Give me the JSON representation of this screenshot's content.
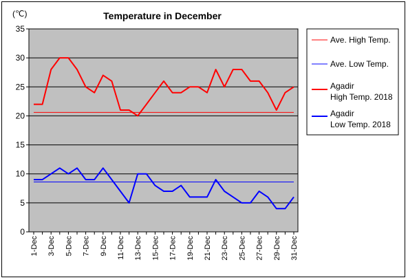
{
  "chart_data": {
    "type": "line",
    "title": "Temperature in December",
    "ylabel": "(℃)",
    "xlabel": "",
    "ylim": [
      0,
      35
    ],
    "yticks": [
      0,
      5,
      10,
      15,
      20,
      25,
      30,
      35
    ],
    "grid": true,
    "legend_placement": "right",
    "plot_background": "#c0c0c0",
    "categories": [
      "1-Dec",
      "2-Dec",
      "3-Dec",
      "4-Dec",
      "5-Dec",
      "6-Dec",
      "7-Dec",
      "8-Dec",
      "9-Dec",
      "10-Dec",
      "11-Dec",
      "12-Dec",
      "13-Dec",
      "14-Dec",
      "15-Dec",
      "16-Dec",
      "17-Dec",
      "18-Dec",
      "19-Dec",
      "20-Dec",
      "21-Dec",
      "22-Dec",
      "23-Dec",
      "24-Dec",
      "25-Dec",
      "26-Dec",
      "27-Dec",
      "28-Dec",
      "29-Dec",
      "30-Dec",
      "31-Dec"
    ],
    "xtick_labels": [
      "1-Dec",
      "3-Dec",
      "5-Dec",
      "7-Dec",
      "9-Dec",
      "11-Dec",
      "13-Dec",
      "15-Dec",
      "17-Dec",
      "19-Dec",
      "21-Dec",
      "23-Dec",
      "25-Dec",
      "27-Dec",
      "29-Dec",
      "31-Dec"
    ],
    "series": [
      {
        "name": "Ave. High Temp.",
        "color": "#ff0000",
        "width": 1,
        "values": [
          20.6,
          20.6,
          20.6,
          20.6,
          20.6,
          20.6,
          20.6,
          20.6,
          20.6,
          20.6,
          20.6,
          20.6,
          20.6,
          20.6,
          20.6,
          20.6,
          20.6,
          20.6,
          20.6,
          20.6,
          20.6,
          20.6,
          20.6,
          20.6,
          20.6,
          20.6,
          20.6,
          20.6,
          20.6,
          20.6,
          20.6
        ]
      },
      {
        "name": "Ave. Low Temp.",
        "color": "#0000ff",
        "width": 1,
        "values": [
          8.6,
          8.6,
          8.6,
          8.6,
          8.6,
          8.6,
          8.6,
          8.6,
          8.6,
          8.6,
          8.6,
          8.6,
          8.6,
          8.6,
          8.6,
          8.6,
          8.6,
          8.6,
          8.6,
          8.6,
          8.6,
          8.6,
          8.6,
          8.6,
          8.6,
          8.6,
          8.6,
          8.6,
          8.6,
          8.6,
          8.6
        ]
      },
      {
        "name": "Agadir\nHigh Temp. 2018",
        "color": "#ff0000",
        "width": 2,
        "values": [
          22,
          22,
          28,
          30,
          30,
          28,
          25,
          24,
          27,
          26,
          21,
          21,
          20,
          22,
          24,
          26,
          24,
          24,
          25,
          25,
          24,
          28,
          25,
          28,
          28,
          26,
          26,
          24,
          21,
          24,
          25
        ]
      },
      {
        "name": "Agadir\nLow Temp. 2018",
        "color": "#0000ff",
        "width": 2,
        "values": [
          9,
          9,
          10,
          11,
          10,
          11,
          9,
          9,
          11,
          9,
          7,
          5,
          10,
          10,
          8,
          7,
          7,
          8,
          6,
          6,
          6,
          9,
          7,
          6,
          5,
          5,
          7,
          6,
          4,
          4,
          6
        ]
      }
    ]
  }
}
